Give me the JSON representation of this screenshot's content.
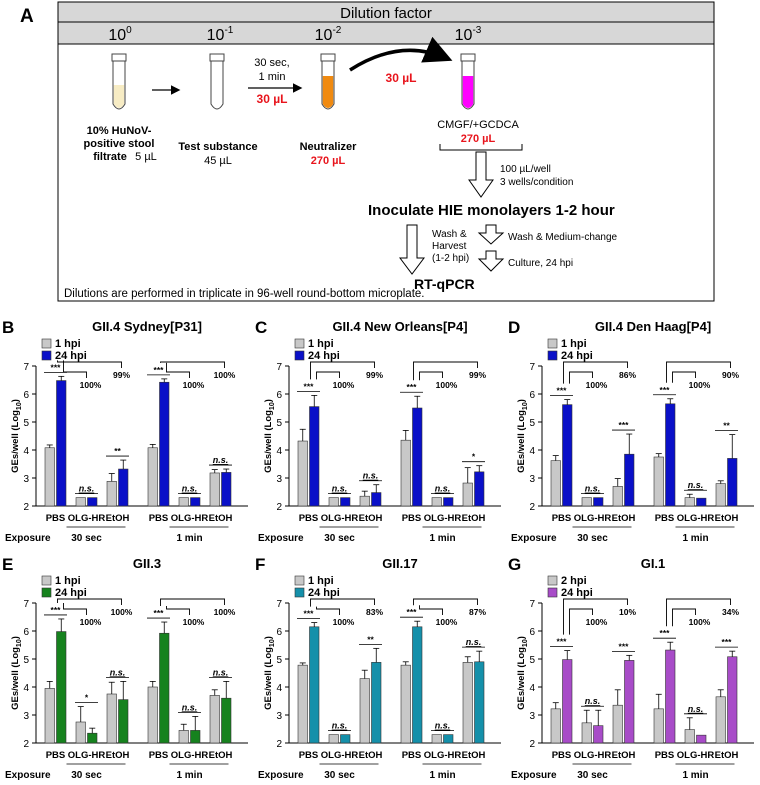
{
  "schematic": {
    "label": "A",
    "header": "Dilution factor",
    "dilutions": [
      {
        "base": "10",
        "exp": "0"
      },
      {
        "base": "10",
        "exp": "-1"
      },
      {
        "base": "10",
        "exp": "-2"
      },
      {
        "base": "10",
        "exp": "-3"
      }
    ],
    "time_line1": "30 sec,",
    "time_line2": "1 min",
    "transfer1": "30 µL",
    "transfer2": "30 µL",
    "tube1_l1": "10% HuNoV-",
    "tube1_l2": "positive stool",
    "tube1_l3": "filtrate",
    "tube1_vol": "5 µL",
    "tube2_l1": "Test substance",
    "tube2_vol": "45 µL",
    "tube3_l1": "Neutralizer",
    "tube3_vol": "270 µL",
    "tube4_l1": "CMGF/+GCDCA",
    "tube4_vol": "270 µL",
    "well_l1": "100 µL/well",
    "well_l2": "3 wells/condition",
    "inoculate": "Inoculate HIE monolayers 1-2 hour",
    "wash_l1": "Wash &",
    "wash_l2": "Harvest",
    "wash_l3": "(1-2 hpi)",
    "medium": "Wash & Medium-change",
    "culture": "Culture, 24 hpi",
    "rtqpcr": "RT-qPCR",
    "footnote": "Dilutions are performed in triplicate in 96-well round-bottom microplate.",
    "colors": {
      "tube1": "#f7ecc4",
      "tube3": "#f08a10",
      "tube4": "#ff00ff",
      "red": "#e8141c"
    }
  },
  "chart_data": [
    {
      "id": "B",
      "letter": "B",
      "title": "GII.4 Sydney[P31]",
      "type": "bar",
      "ylabel": "GEs/well (Log10)",
      "ylim": [
        2,
        7
      ],
      "xlabel": "Exposure",
      "categories": [
        "PBS",
        "OLG-HR",
        "EtOH"
      ],
      "groups": [
        "30 sec",
        "1 min"
      ],
      "series": [
        {
          "name": "1 hpi",
          "color": "#c8c8c8"
        },
        {
          "name": "24 hpi",
          "color": "#0a10c8"
        }
      ],
      "values": [
        [
          [
            4.08,
            6.48
          ],
          [
            2.3,
            2.3
          ],
          [
            2.88,
            3.32
          ]
        ],
        [
          [
            4.08,
            6.42
          ],
          [
            2.3,
            2.3
          ],
          [
            3.18,
            3.2
          ]
        ]
      ],
      "errors": [
        [
          [
            0.1,
            0.15
          ],
          [
            0,
            0
          ],
          [
            0.28,
            0.32
          ]
        ],
        [
          [
            0.12,
            0.12
          ],
          [
            0,
            0
          ],
          [
            0.12,
            0.12
          ]
        ]
      ],
      "sig": [
        [
          "***",
          "n.s.",
          "**"
        ],
        [
          "***",
          "n.s.",
          "n.s."
        ]
      ],
      "pct": [
        [
          "100%",
          "99%"
        ],
        [
          "100%",
          "100%"
        ]
      ]
    },
    {
      "id": "C",
      "letter": "C",
      "title": "GII.4 New Orleans[P4]",
      "type": "bar",
      "ylabel": "GEs/well (Log10)",
      "ylim": [
        2,
        7
      ],
      "xlabel": "Exposure",
      "categories": [
        "PBS",
        "OLG-HR",
        "EtOH"
      ],
      "groups": [
        "30 sec",
        "1 min"
      ],
      "series": [
        {
          "name": "1 hpi",
          "color": "#c8c8c8"
        },
        {
          "name": "24 hpi",
          "color": "#0a10c8"
        }
      ],
      "values": [
        [
          [
            4.32,
            5.55
          ],
          [
            2.3,
            2.3
          ],
          [
            2.35,
            2.48
          ]
        ],
        [
          [
            4.35,
            5.5
          ],
          [
            2.3,
            2.3
          ],
          [
            2.82,
            3.22
          ]
        ]
      ],
      "errors": [
        [
          [
            0.42,
            0.4
          ],
          [
            0,
            0
          ],
          [
            0.18,
            0.28
          ]
        ],
        [
          [
            0.35,
            0.42
          ],
          [
            0,
            0
          ],
          [
            0.55,
            0.22
          ]
        ]
      ],
      "sig": [
        [
          "***",
          "n.s.",
          "n.s."
        ],
        [
          "***",
          "n.s.",
          "*"
        ]
      ],
      "pct": [
        [
          "100%",
          "99%"
        ],
        [
          "100%",
          "99%"
        ]
      ]
    },
    {
      "id": "D",
      "letter": "D",
      "title": "GII.4 Den Haag[P4]",
      "type": "bar",
      "ylabel": "GEs/well (Log10)",
      "ylim": [
        2,
        7
      ],
      "xlabel": "Exposure",
      "categories": [
        "PBS",
        "OLG-HR",
        "EtOH"
      ],
      "groups": [
        "30 sec",
        "1 min"
      ],
      "series": [
        {
          "name": "1 hpi",
          "color": "#c8c8c8"
        },
        {
          "name": "24 hpi",
          "color": "#0a10c8"
        }
      ],
      "values": [
        [
          [
            3.62,
            5.62
          ],
          [
            2.3,
            2.3
          ],
          [
            2.7,
            3.85
          ]
        ],
        [
          [
            3.75,
            5.65
          ],
          [
            2.3,
            2.28
          ],
          [
            2.8,
            3.7
          ]
        ]
      ],
      "errors": [
        [
          [
            0.18,
            0.18
          ],
          [
            0,
            0
          ],
          [
            0.28,
            0.72
          ]
        ],
        [
          [
            0.12,
            0.18
          ],
          [
            0.12,
            0
          ],
          [
            0.1,
            0.85
          ]
        ]
      ],
      "sig": [
        [
          "***",
          "n.s.",
          "***"
        ],
        [
          "***",
          "n.s.",
          "**"
        ]
      ],
      "pct": [
        [
          "100%",
          "86%"
        ],
        [
          "100%",
          "90%"
        ]
      ]
    },
    {
      "id": "E",
      "letter": "E",
      "title": "GII.3",
      "type": "bar",
      "ylabel": "GEs/well (Log10)",
      "ylim": [
        2,
        7
      ],
      "xlabel": "Exposure",
      "categories": [
        "PBS",
        "OLG-HR",
        "EtOH"
      ],
      "groups": [
        "30 sec",
        "1 min"
      ],
      "series": [
        {
          "name": "1 hpi",
          "color": "#c8c8c8"
        },
        {
          "name": "24 hpi",
          "color": "#16821e"
        }
      ],
      "values": [
        [
          [
            3.95,
            5.98
          ],
          [
            2.75,
            2.35
          ],
          [
            3.75,
            3.55
          ]
        ],
        [
          [
            4.0,
            5.92
          ],
          [
            2.45,
            2.45
          ],
          [
            3.7,
            3.6
          ]
        ]
      ],
      "errors": [
        [
          [
            0.25,
            0.45
          ],
          [
            0.55,
            0.18
          ],
          [
            0.42,
            0.65
          ]
        ],
        [
          [
            0.2,
            0.4
          ],
          [
            0.22,
            0.5
          ],
          [
            0.2,
            0.6
          ]
        ]
      ],
      "sig": [
        [
          "***",
          "*",
          "n.s."
        ],
        [
          "***",
          "n.s.",
          "n.s."
        ]
      ],
      "pct": [
        [
          "100%",
          "100%"
        ],
        [
          "100%",
          "100%"
        ]
      ]
    },
    {
      "id": "F",
      "letter": "F",
      "title": "GII.17",
      "type": "bar",
      "ylabel": "GEs/well (Log10)",
      "ylim": [
        2,
        7
      ],
      "xlabel": "Exposure",
      "categories": [
        "PBS",
        "OLG-HR",
        "EtOH"
      ],
      "groups": [
        "30 sec",
        "1 min"
      ],
      "series": [
        {
          "name": "1 hpi",
          "color": "#c8c8c8"
        },
        {
          "name": "24 hpi",
          "color": "#1590aa"
        }
      ],
      "values": [
        [
          [
            4.78,
            6.15
          ],
          [
            2.3,
            2.3
          ],
          [
            4.3,
            4.88
          ]
        ],
        [
          [
            4.78,
            6.15
          ],
          [
            2.3,
            2.3
          ],
          [
            4.88,
            4.9
          ]
        ]
      ],
      "errors": [
        [
          [
            0.08,
            0.15
          ],
          [
            0,
            0
          ],
          [
            0.3,
            0.5
          ]
        ],
        [
          [
            0.12,
            0.2
          ],
          [
            0,
            0
          ],
          [
            0.2,
            0.38
          ]
        ]
      ],
      "sig": [
        [
          "***",
          "n.s.",
          "**"
        ],
        [
          "***",
          "n.s.",
          "n.s."
        ]
      ],
      "pct": [
        [
          "100%",
          "83%"
        ],
        [
          "100%",
          "87%"
        ]
      ]
    },
    {
      "id": "G",
      "letter": "G",
      "title": "GI.1",
      "type": "bar",
      "ylabel": "GEs/well (Log10)",
      "ylim": [
        2,
        7
      ],
      "xlabel": "Exposure",
      "categories": [
        "PBS",
        "OLG-HR",
        "EtOH"
      ],
      "groups": [
        "30 sec",
        "1 min"
      ],
      "series": [
        {
          "name": "2 hpi",
          "color": "#c8c8c8"
        },
        {
          "name": "24 hpi",
          "color": "#a84cc8"
        }
      ],
      "values": [
        [
          [
            3.22,
            4.98
          ],
          [
            2.72,
            2.62
          ],
          [
            3.35,
            4.95
          ]
        ],
        [
          [
            3.22,
            5.32
          ],
          [
            2.48,
            2.28
          ],
          [
            3.65,
            5.08
          ]
        ]
      ],
      "errors": [
        [
          [
            0.22,
            0.32
          ],
          [
            0.45,
            0.55
          ],
          [
            0.55,
            0.18
          ]
        ],
        [
          [
            0.52,
            0.28
          ],
          [
            0.42,
            0
          ],
          [
            0.25,
            0.2
          ]
        ]
      ],
      "sig": [
        [
          "***",
          "n.s.",
          "***"
        ],
        [
          "***",
          "n.s.",
          "***"
        ]
      ],
      "pct": [
        [
          "100%",
          "10%"
        ],
        [
          "100%",
          "34%"
        ]
      ]
    }
  ]
}
